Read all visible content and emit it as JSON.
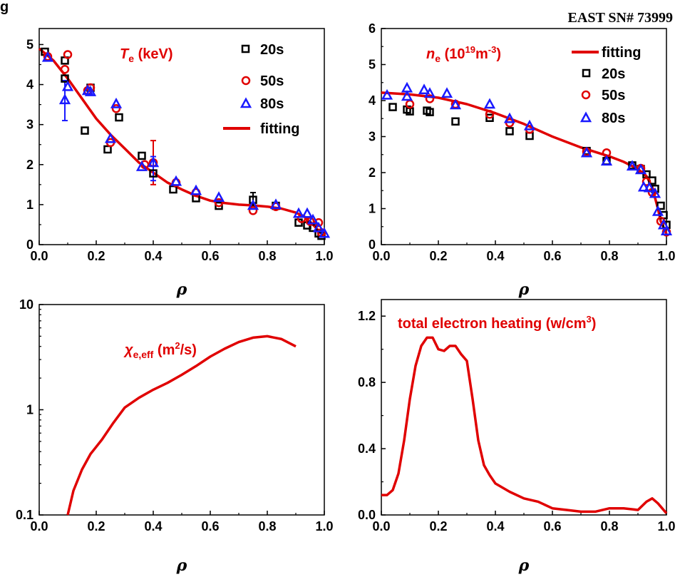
{
  "figure": {
    "header": "EAST SN# 73999",
    "corner_label": "g"
  },
  "colors": {
    "fit": "#e00000",
    "s20": "#000000",
    "s50": "#e00000",
    "s80": "#1a1aff"
  },
  "chart_data": [
    {
      "id": "te",
      "type": "scatter",
      "title_main": "T",
      "title_sub": "e",
      "title_unit": " (keV)",
      "xlabel": "ρ",
      "xlim": [
        0,
        1
      ],
      "ylim": [
        0,
        5.4
      ],
      "xticks": [
        0.0,
        0.2,
        0.4,
        0.6,
        0.8,
        1.0
      ],
      "xtick_labels": [
        "0.0",
        "0.2",
        "0.4",
        "0.6",
        "0.8",
        "1.0"
      ],
      "yticks": [
        0,
        1,
        2,
        3,
        4,
        5
      ],
      "ytick_labels": [
        "0",
        "1",
        "2",
        "3",
        "4",
        "5"
      ],
      "legend_position": "top-right",
      "legend": [
        "20s",
        "50s",
        "80s",
        "fitting"
      ],
      "series": [
        {
          "name": "20s",
          "marker": "square",
          "color_key": "s20",
          "points": [
            [
              0.02,
              4.82
            ],
            [
              0.09,
              4.6
            ],
            [
              0.09,
              4.15
            ],
            [
              0.16,
              2.85
            ],
            [
              0.18,
              3.92
            ],
            [
              0.24,
              2.38
            ],
            [
              0.28,
              3.18
            ],
            [
              0.36,
              2.22
            ],
            [
              0.4,
              1.78
            ],
            [
              0.47,
              1.38
            ],
            [
              0.55,
              1.16
            ],
            [
              0.63,
              0.97
            ],
            [
              0.75,
              1.12
            ],
            [
              0.83,
              0.97
            ],
            [
              0.91,
              0.55
            ],
            [
              0.94,
              0.48
            ],
            [
              0.96,
              0.42
            ],
            [
              0.98,
              0.28
            ],
            [
              0.99,
              0.22
            ]
          ]
        },
        {
          "name": "50s",
          "marker": "circle",
          "color_key": "s50",
          "points": [
            [
              0.03,
              4.7
            ],
            [
              0.09,
              4.38
            ],
            [
              0.1,
              4.75
            ],
            [
              0.17,
              3.85
            ],
            [
              0.18,
              3.92
            ],
            [
              0.25,
              2.55
            ],
            [
              0.27,
              3.4
            ],
            [
              0.37,
              2.0
            ],
            [
              0.4,
              2.05
            ],
            [
              0.48,
              1.55
            ],
            [
              0.55,
              1.3
            ],
            [
              0.63,
              1.05
            ],
            [
              0.75,
              0.85
            ],
            [
              0.83,
              0.95
            ],
            [
              0.92,
              0.65
            ],
            [
              0.95,
              0.58
            ],
            [
              0.98,
              0.55
            ],
            [
              0.99,
              0.3
            ]
          ]
        },
        {
          "name": "80s",
          "marker": "triangle",
          "color_key": "s80",
          "points": [
            [
              0.03,
              4.68
            ],
            [
              0.09,
              3.62
            ],
            [
              0.1,
              3.95
            ],
            [
              0.17,
              3.85
            ],
            [
              0.18,
              3.82
            ],
            [
              0.25,
              2.65
            ],
            [
              0.27,
              3.52
            ],
            [
              0.36,
              1.95
            ],
            [
              0.4,
              2.05
            ],
            [
              0.48,
              1.58
            ],
            [
              0.55,
              1.35
            ],
            [
              0.63,
              1.18
            ],
            [
              0.75,
              0.98
            ],
            [
              0.83,
              1.0
            ],
            [
              0.91,
              0.78
            ],
            [
              0.94,
              0.78
            ],
            [
              0.96,
              0.62
            ],
            [
              0.98,
              0.42
            ],
            [
              1.0,
              0.28
            ]
          ]
        }
      ],
      "error_bars": [
        {
          "x": 0.09,
          "y_low": 3.1,
          "y_high": 4.1,
          "color_key": "s80"
        },
        {
          "x": 0.4,
          "y_low": 1.5,
          "y_high": 2.6,
          "color_key": "s50"
        },
        {
          "x": 0.4,
          "y_low": 1.6,
          "y_high": 2.2,
          "color_key": "s80"
        },
        {
          "x": 0.75,
          "y_low": 0.95,
          "y_high": 1.3,
          "color_key": "s20"
        }
      ],
      "fit": {
        "name": "fitting",
        "color_key": "fit",
        "points": [
          [
            0.0,
            4.9
          ],
          [
            0.05,
            4.6
          ],
          [
            0.1,
            4.15
          ],
          [
            0.15,
            3.65
          ],
          [
            0.2,
            3.15
          ],
          [
            0.25,
            2.75
          ],
          [
            0.3,
            2.4
          ],
          [
            0.35,
            2.05
          ],
          [
            0.4,
            1.8
          ],
          [
            0.45,
            1.55
          ],
          [
            0.5,
            1.38
          ],
          [
            0.55,
            1.22
          ],
          [
            0.6,
            1.1
          ],
          [
            0.65,
            1.04
          ],
          [
            0.7,
            1.0
          ],
          [
            0.75,
            0.98
          ],
          [
            0.8,
            0.95
          ],
          [
            0.85,
            0.9
          ],
          [
            0.9,
            0.8
          ],
          [
            0.93,
            0.7
          ],
          [
            0.96,
            0.5
          ],
          [
            0.98,
            0.35
          ],
          [
            1.0,
            0.2
          ]
        ]
      }
    },
    {
      "id": "ne",
      "type": "scatter",
      "title_main": "n",
      "title_sub": "e",
      "title_unit": " (10",
      "title_sup": "19",
      "title_unit2": "m",
      "title_sup2": "-3",
      "title_close": ")",
      "xlabel": "ρ",
      "xlim": [
        0,
        1
      ],
      "ylim": [
        0,
        6
      ],
      "xticks": [
        0.0,
        0.2,
        0.4,
        0.6,
        0.8,
        1.0
      ],
      "xtick_labels": [
        "0.0",
        "0.2",
        "0.4",
        "0.6",
        "0.8",
        "1.0"
      ],
      "yticks": [
        0,
        1,
        2,
        3,
        4,
        5,
        6
      ],
      "ytick_labels": [
        "0",
        "1",
        "2",
        "3",
        "4",
        "5",
        "6"
      ],
      "legend_position": "top-right",
      "legend": [
        "fitting",
        "20s",
        "50s",
        "80s"
      ],
      "series": [
        {
          "name": "20s",
          "marker": "square",
          "color_key": "s20",
          "points": [
            [
              0.04,
              3.82
            ],
            [
              0.09,
              3.75
            ],
            [
              0.1,
              3.7
            ],
            [
              0.16,
              3.72
            ],
            [
              0.17,
              3.68
            ],
            [
              0.26,
              3.42
            ],
            [
              0.38,
              3.52
            ],
            [
              0.45,
              3.15
            ],
            [
              0.52,
              3.02
            ],
            [
              0.72,
              2.6
            ],
            [
              0.79,
              2.32
            ],
            [
              0.88,
              2.2
            ],
            [
              0.91,
              2.1
            ],
            [
              0.93,
              1.95
            ],
            [
              0.95,
              1.78
            ],
            [
              0.96,
              1.55
            ],
            [
              0.98,
              1.08
            ],
            [
              0.99,
              0.82
            ],
            [
              1.0,
              0.55
            ]
          ]
        },
        {
          "name": "50s",
          "marker": "circle",
          "color_key": "s50",
          "points": [
            [
              0.1,
              3.9
            ],
            [
              0.17,
              4.05
            ],
            [
              0.26,
              3.9
            ],
            [
              0.38,
              3.62
            ],
            [
              0.45,
              3.38
            ],
            [
              0.52,
              3.2
            ],
            [
              0.72,
              2.58
            ],
            [
              0.79,
              2.55
            ],
            [
              0.91,
              2.12
            ],
            [
              0.93,
              1.75
            ],
            [
              0.95,
              1.45
            ],
            [
              0.98,
              0.65
            ],
            [
              1.0,
              0.35
            ]
          ]
        },
        {
          "name": "80s",
          "marker": "triangle",
          "color_key": "s80",
          "points": [
            [
              0.02,
              4.15
            ],
            [
              0.09,
              4.12
            ],
            [
              0.09,
              4.35
            ],
            [
              0.15,
              4.3
            ],
            [
              0.17,
              4.2
            ],
            [
              0.23,
              4.2
            ],
            [
              0.26,
              3.88
            ],
            [
              0.38,
              3.9
            ],
            [
              0.45,
              3.5
            ],
            [
              0.52,
              3.3
            ],
            [
              0.72,
              2.55
            ],
            [
              0.79,
              2.32
            ],
            [
              0.88,
              2.18
            ],
            [
              0.91,
              2.08
            ],
            [
              0.92,
              1.6
            ],
            [
              0.94,
              1.58
            ],
            [
              0.96,
              1.42
            ],
            [
              0.97,
              0.92
            ],
            [
              0.99,
              0.55
            ],
            [
              1.0,
              0.38
            ]
          ]
        }
      ],
      "fit": {
        "name": "fitting",
        "color_key": "fit",
        "points": [
          [
            0.0,
            4.22
          ],
          [
            0.1,
            4.17
          ],
          [
            0.2,
            4.08
          ],
          [
            0.3,
            3.9
          ],
          [
            0.4,
            3.65
          ],
          [
            0.5,
            3.35
          ],
          [
            0.6,
            3.0
          ],
          [
            0.7,
            2.7
          ],
          [
            0.8,
            2.45
          ],
          [
            0.85,
            2.3
          ],
          [
            0.9,
            2.1
          ],
          [
            0.93,
            1.9
          ],
          [
            0.95,
            1.6
          ],
          [
            0.97,
            1.0
          ],
          [
            0.98,
            0.65
          ],
          [
            1.0,
            0.3
          ]
        ]
      }
    },
    {
      "id": "chi",
      "type": "line",
      "title_main": "χ",
      "title_sub": "e,eff",
      "title_unit": " (m",
      "title_sup": "2",
      "title_close": "/s)",
      "xlabel": "ρ",
      "xlim": [
        0,
        1
      ],
      "ylim": [
        0.1,
        10
      ],
      "yscale": "log",
      "xticks": [
        0.0,
        0.2,
        0.4,
        0.6,
        0.8,
        1.0
      ],
      "xtick_labels": [
        "0.0",
        "0.2",
        "0.4",
        "0.6",
        "0.8",
        "1.0"
      ],
      "yticks": [
        0.1,
        1,
        10
      ],
      "ytick_labels": [
        "0.1",
        "1",
        "10"
      ],
      "fit": {
        "color_key": "fit",
        "points": [
          [
            0.1,
            0.1
          ],
          [
            0.12,
            0.17
          ],
          [
            0.15,
            0.27
          ],
          [
            0.18,
            0.38
          ],
          [
            0.22,
            0.52
          ],
          [
            0.26,
            0.75
          ],
          [
            0.3,
            1.05
          ],
          [
            0.35,
            1.3
          ],
          [
            0.4,
            1.55
          ],
          [
            0.45,
            1.8
          ],
          [
            0.5,
            2.15
          ],
          [
            0.55,
            2.6
          ],
          [
            0.6,
            3.2
          ],
          [
            0.65,
            3.8
          ],
          [
            0.7,
            4.4
          ],
          [
            0.75,
            4.85
          ],
          [
            0.8,
            5.0
          ],
          [
            0.85,
            4.7
          ],
          [
            0.9,
            4.0
          ]
        ]
      }
    },
    {
      "id": "heat",
      "type": "line",
      "title_main": "total electron heating (w/cm",
      "title_sup": "3",
      "title_close": ")",
      "xlabel": "ρ",
      "xlim": [
        0,
        1
      ],
      "ylim": [
        0,
        1.3
      ],
      "xticks": [
        0.0,
        0.2,
        0.4,
        0.6,
        0.8,
        1.0
      ],
      "xtick_labels": [
        "0.0",
        "0.2",
        "0.4",
        "0.6",
        "0.8",
        "1.0"
      ],
      "yticks": [
        0.0,
        0.4,
        0.8,
        1.2
      ],
      "ytick_labels": [
        "0.0",
        "0.4",
        "0.8",
        "1.2"
      ],
      "fit": {
        "color_key": "fit",
        "points": [
          [
            0.0,
            0.12
          ],
          [
            0.02,
            0.12
          ],
          [
            0.04,
            0.15
          ],
          [
            0.06,
            0.25
          ],
          [
            0.08,
            0.45
          ],
          [
            0.1,
            0.7
          ],
          [
            0.12,
            0.9
          ],
          [
            0.14,
            1.02
          ],
          [
            0.16,
            1.07
          ],
          [
            0.18,
            1.07
          ],
          [
            0.2,
            1.0
          ],
          [
            0.22,
            0.99
          ],
          [
            0.24,
            1.02
          ],
          [
            0.26,
            1.02
          ],
          [
            0.28,
            0.97
          ],
          [
            0.3,
            0.93
          ],
          [
            0.32,
            0.7
          ],
          [
            0.34,
            0.45
          ],
          [
            0.36,
            0.3
          ],
          [
            0.38,
            0.24
          ],
          [
            0.4,
            0.19
          ],
          [
            0.45,
            0.14
          ],
          [
            0.5,
            0.1
          ],
          [
            0.55,
            0.08
          ],
          [
            0.6,
            0.04
          ],
          [
            0.65,
            0.03
          ],
          [
            0.7,
            0.02
          ],
          [
            0.75,
            0.02
          ],
          [
            0.8,
            0.04
          ],
          [
            0.85,
            0.04
          ],
          [
            0.9,
            0.03
          ],
          [
            0.93,
            0.08
          ],
          [
            0.95,
            0.1
          ],
          [
            0.97,
            0.07
          ],
          [
            1.0,
            0.01
          ]
        ]
      }
    }
  ]
}
